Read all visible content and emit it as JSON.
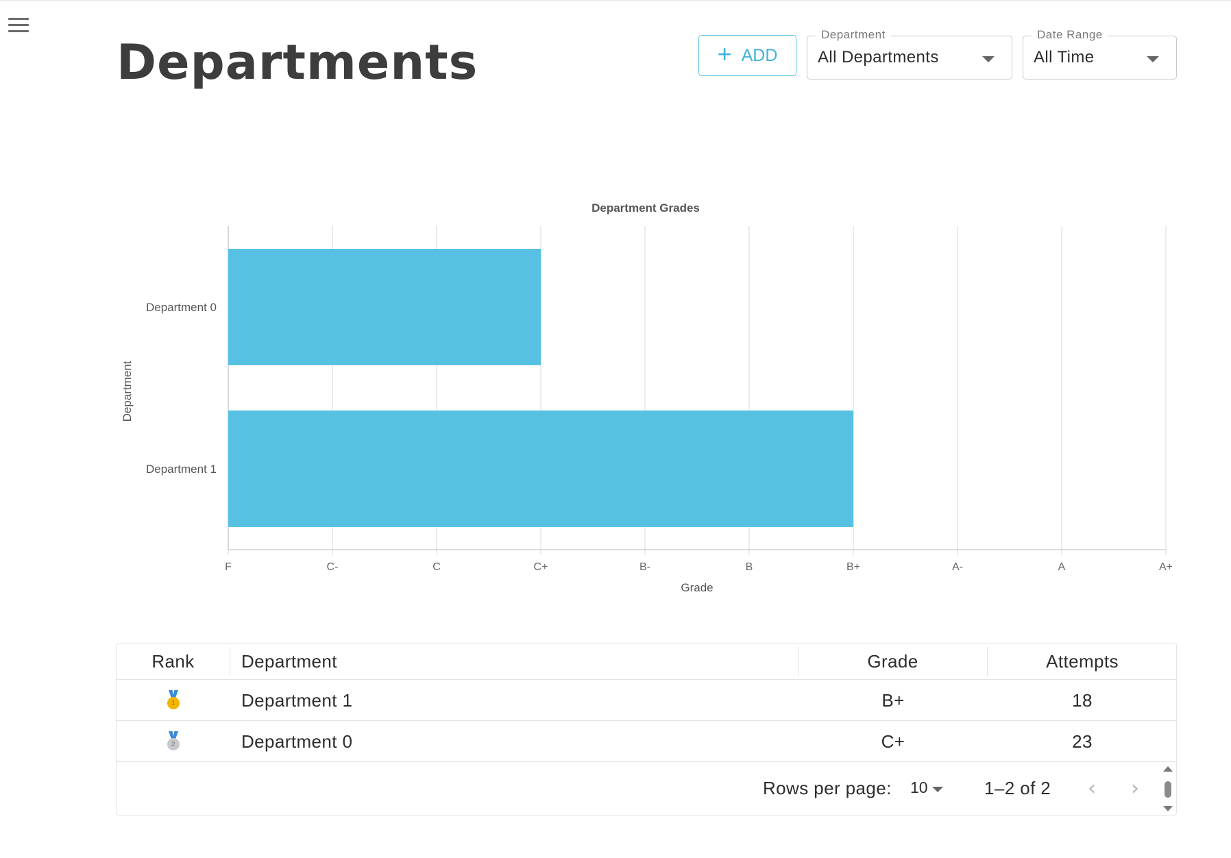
{
  "page": {
    "title": "Departments"
  },
  "toolbar": {
    "add_label": "ADD",
    "department": {
      "legend": "Department",
      "value": "All Departments"
    },
    "date_range": {
      "legend": "Date Range",
      "value": "All Time"
    }
  },
  "chart_data": {
    "type": "bar",
    "orientation": "horizontal",
    "title": "Department Grades",
    "xlabel": "Grade",
    "ylabel": "Department",
    "x_ticks": [
      "F",
      "C-",
      "C",
      "C+",
      "B-",
      "B",
      "B+",
      "A-",
      "A",
      "A+"
    ],
    "categories": [
      "Department 0",
      "Department 1"
    ],
    "values": [
      "C+",
      "B+"
    ],
    "value_index": [
      3,
      6
    ],
    "grid": true,
    "bar_color": "#56c1e2"
  },
  "table": {
    "headers": {
      "rank": "Rank",
      "department": "Department",
      "grade": "Grade",
      "attempts": "Attempts"
    },
    "rows": [
      {
        "rank": 1,
        "medal": "gold-medal-icon",
        "department": "Department 1",
        "grade": "B+",
        "attempts": "18"
      },
      {
        "rank": 2,
        "medal": "silver-medal-icon",
        "department": "Department 0",
        "grade": "C+",
        "attempts": "23"
      }
    ],
    "footer": {
      "rows_per_page_label": "Rows per page:",
      "rows_per_page": "10",
      "range": "1–2 of 2"
    }
  },
  "colors": {
    "accent": "#56c1e2",
    "text": "#2d2d2d"
  }
}
